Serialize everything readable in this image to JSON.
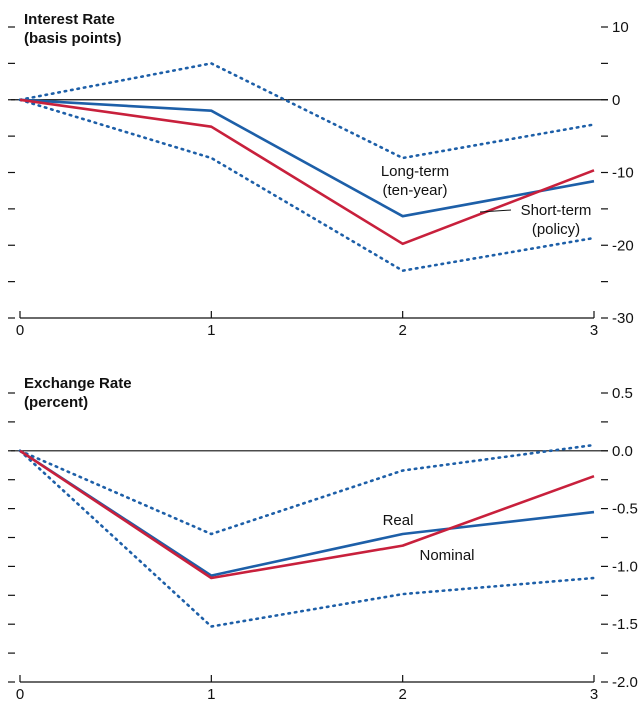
{
  "colors": {
    "blue": "#1d5fa8",
    "red": "#c8203c",
    "axis": "#111111"
  },
  "chart_data": [
    {
      "type": "line",
      "title": [
        "Interest Rate",
        "(basis points)"
      ],
      "x": [
        0,
        1,
        2,
        3
      ],
      "x_tick_labels": [
        "0",
        "1",
        "2",
        "3"
      ],
      "xlim": [
        0,
        3
      ],
      "ylim": [
        -30,
        10
      ],
      "y_ticks": [
        10,
        0,
        -10,
        -20,
        -30
      ],
      "y_tick_labels": [
        "10",
        "0",
        "-10",
        "-20",
        "-30"
      ],
      "y_minor_step": 5,
      "y_axis_side": "right",
      "zero_line": true,
      "grid": false,
      "legend": "none",
      "series": [
        {
          "name": "Long-term (ten-year)",
          "values": [
            0,
            -1.5,
            -16,
            -11.2
          ],
          "color": "#1d5fa8",
          "style": "solid"
        },
        {
          "name": "Short-term (policy)",
          "values": [
            0,
            -3.7,
            -19.8,
            -9.7
          ],
          "color": "#c8203c",
          "style": "solid"
        },
        {
          "values": [
            0,
            5,
            -8,
            -3.4
          ],
          "color": "#1d5fa8",
          "style": "dotted"
        },
        {
          "values": [
            0,
            -8,
            -23.5,
            -19
          ],
          "color": "#1d5fa8",
          "style": "dotted"
        }
      ],
      "annotations": [
        {
          "lines": [
            "Long-term",
            "(ten-year)"
          ],
          "series": 0
        },
        {
          "lines": [
            "Short-term",
            "(policy)"
          ],
          "series": 1
        }
      ]
    },
    {
      "type": "line",
      "title": [
        "Exchange Rate",
        "(percent)"
      ],
      "x": [
        0,
        1,
        2,
        3
      ],
      "x_tick_labels": [
        "0",
        "1",
        "2",
        "3"
      ],
      "xlim": [
        0,
        3
      ],
      "ylim": [
        -2.0,
        0.5
      ],
      "y_ticks": [
        0.5,
        0.0,
        -0.5,
        -1.0,
        -1.5,
        -2.0
      ],
      "y_tick_labels": [
        "0.5",
        "0.0",
        "-0.5",
        "-1.0",
        "-1.5",
        "-2.0"
      ],
      "y_minor_step": 0.25,
      "y_axis_side": "right",
      "zero_line": true,
      "grid": false,
      "legend": "none",
      "series": [
        {
          "name": "Real",
          "values": [
            0,
            -1.08,
            -0.72,
            -0.53
          ],
          "color": "#1d5fa8",
          "style": "solid"
        },
        {
          "name": "Nominal",
          "values": [
            0,
            -1.1,
            -0.82,
            -0.22
          ],
          "color": "#c8203c",
          "style": "solid"
        },
        {
          "values": [
            0,
            -0.72,
            -0.17,
            0.05
          ],
          "color": "#1d5fa8",
          "style": "dotted"
        },
        {
          "values": [
            0,
            -1.52,
            -1.24,
            -1.1
          ],
          "color": "#1d5fa8",
          "style": "dotted"
        }
      ],
      "annotations": [
        {
          "lines": [
            "Real"
          ],
          "series": 0
        },
        {
          "lines": [
            "Nominal"
          ],
          "series": 1
        }
      ]
    }
  ]
}
